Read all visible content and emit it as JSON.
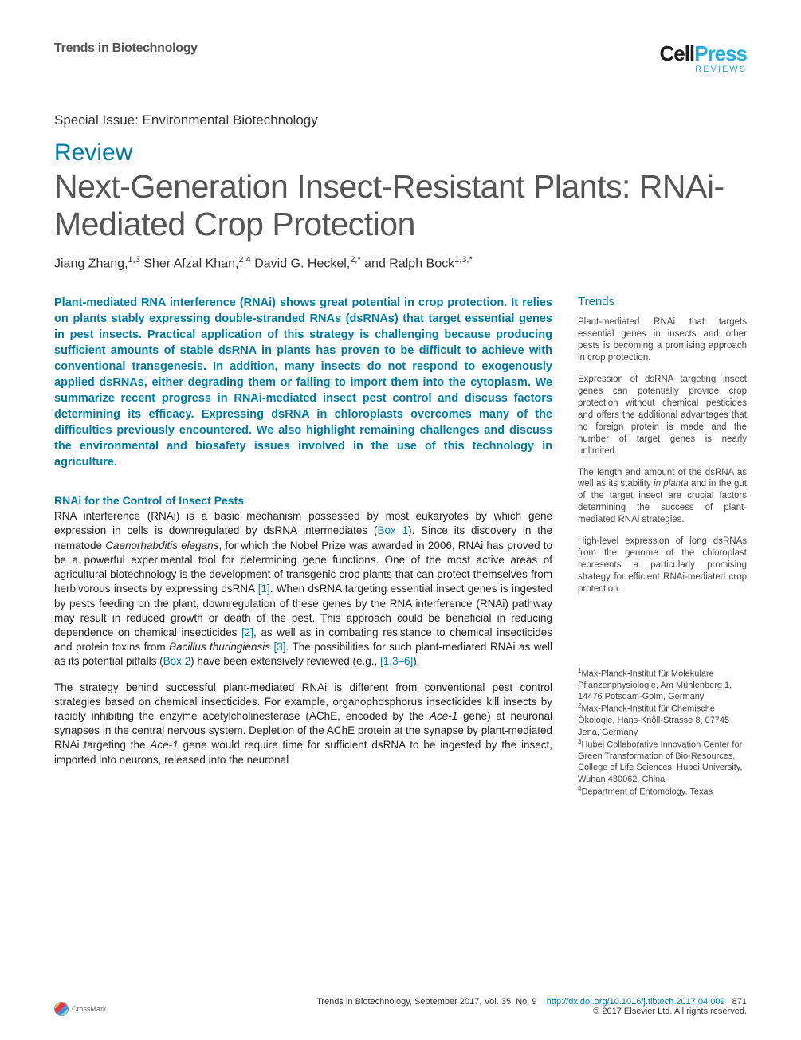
{
  "header": {
    "journal": "Trends in Biotechnology",
    "publisher_cell": "Cell",
    "publisher_press": "Press",
    "publisher_sub": "REVIEWS"
  },
  "meta": {
    "special_issue": "Special Issue: Environmental Biotechnology",
    "review_label": "Review",
    "title": "Next-Generation Insect-Resistant Plants: RNAi-Mediated Crop Protection",
    "authors_html": "Jiang Zhang,<sup>1,3</sup> Sher Afzal Khan,<sup>2,4</sup> David G. Heckel,<sup>2,*</sup> and Ralph Bock<sup>1,3,*</sup>"
  },
  "abstract": "Plant-mediated RNA interference (RNAi) shows great potential in crop protection. It relies on plants stably expressing double-stranded RNAs (dsRNAs) that target essential genes in pest insects. Practical application of this strategy is challenging because producing sufficient amounts of stable dsRNA in plants has proven to be difficult to achieve with conventional transgenesis. In addition, many insects do not respond to exogenously applied dsRNAs, either degrading them or failing to import them into the cytoplasm. We summarize recent progress in RNAi-mediated insect pest control and discuss factors determining its efficacy. Expressing dsRNA in chloroplasts overcomes many of the difficulties previously encountered. We also highlight remaining challenges and discuss the environmental and biosafety issues involved in the use of this technology in agriculture.",
  "section1": {
    "heading": "RNAi for the Control of Insect Pests",
    "para1": "RNA interference (RNAi) is a basic mechanism possessed by most eukaryotes by which gene expression in cells is downregulated by dsRNA intermediates (<span class='cite'>Box 1</span>). Since its discovery in the nematode <em>Caenorhabditis elegans</em>, for which the Nobel Prize was awarded in 2006, RNAi has proved to be a powerful experimental tool for determining gene functions. One of the most active areas of agricultural biotechnology is the development of transgenic crop plants that can protect themselves from herbivorous insects by expressing dsRNA <span class='cite'>[1]</span>. When dsRNA targeting essential insect genes is ingested by pests feeding on the plant, downregulation of these genes by the RNA interference (RNAi) pathway may result in reduced growth or death of the pest. This approach could be beneficial in reducing dependence on chemical insecticides <span class='cite'>[2]</span>, as well as in combating resistance to chemical insecticides and protein toxins from <em>Bacillus thuringiensis</em> <span class='cite'>[3]</span>. The possibilities for such plant-mediated RNAi as well as its potential pitfalls (<span class='cite'>Box 2</span>) have been extensively reviewed (e.g., <span class='cite'>[1,3–6]</span>).",
    "para2": "The strategy behind successful plant-mediated RNAi is different from conventional pest control strategies based on chemical insecticides. For example, organophosphorus insecticides kill insects by rapidly inhibiting the enzyme acetylcholinesterase (AChE, encoded by the <em>Ace-1</em> gene) at neuronal synapses in the central nervous system. Depletion of the AChE protein at the synapse by plant-mediated RNAi targeting the <em>Ace-1</em> gene would require time for sufficient dsRNA to be ingested by the insect, imported into neurons, released into the neuronal"
  },
  "trends": {
    "heading": "Trends",
    "items": [
      "Plant-mediated RNAi that targets essential genes in insects and other pests is becoming a promising approach in crop protection.",
      "Expression of dsRNA targeting insect genes can potentially provide crop protection without chemical pesticides and offers the additional advantages that no foreign protein is made and the number of target genes is nearly unlimited.",
      "The length and amount of the dsRNA as well as its stability <em>in planta</em> and in the gut of the target insect are crucial factors determining the success of plant-mediated RNAi strategies.",
      "High-level expression of long dsRNAs from the genome of the chloroplast represents a particularly promising strategy for efficient RNAi-mediated crop protection."
    ]
  },
  "affiliations": "<sup>1</sup>Max-Planck-Institut für Molekulare Pflanzenphysiologie, Am Mühlenberg 1, 14476 Potsdam-Golm, Germany<br><sup>2</sup>Max-Planck-Institut für Chemische Ökologie, Hans-Knöll-Strasse 8, 07745 Jena, Germany<br><sup>3</sup>Hubei Collaborative Innovation Center for Green Transformation of Bio-Resources, College of Life Sciences, Hubei University, Wuhan 430062, China<br><sup>4</sup>Department of Entomology, Texas",
  "footer": {
    "citation": "Trends in Biotechnology, September 2017, Vol. 35, No. 9",
    "doi": "http://dx.doi.org/10.1016/j.tibtech.2017.04.009",
    "page": "871",
    "copyright": "© 2017 Elsevier Ltd. All rights reserved.",
    "crossmark": "CrossMark"
  },
  "colors": {
    "accent_blue": "#007aa6",
    "press_blue": "#29abe2",
    "body_text": "#222222",
    "meta_text": "#555555"
  }
}
